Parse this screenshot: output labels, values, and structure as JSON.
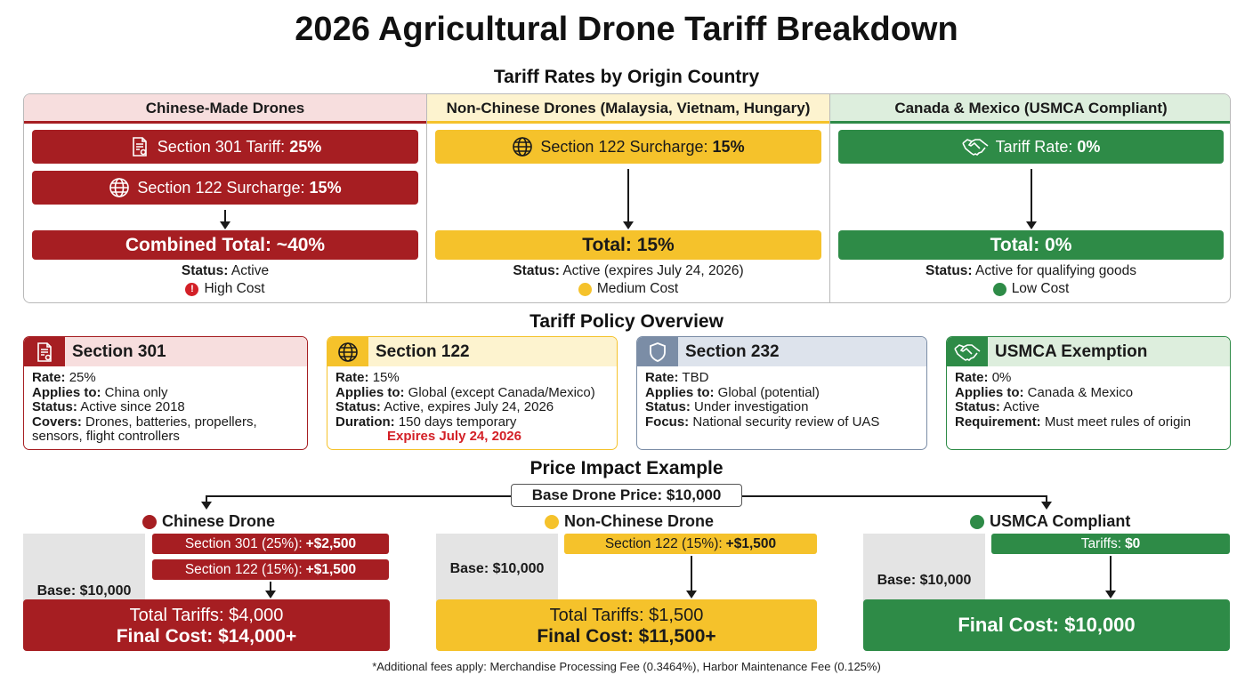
{
  "title": "2026 Agricultural Drone Tariff Breakdown",
  "rates": {
    "heading": "Tariff Rates by Origin Country",
    "colors": {
      "red": "#a61e22",
      "yellow": "#f5c22b",
      "green": "#2e8b47",
      "blue_gray": "#7b8da6"
    },
    "columns": [
      {
        "name": "Chinese-Made Drones",
        "items": [
          {
            "label": "Section 301 Tariff:",
            "value": "25%",
            "icon": "document-icon"
          },
          {
            "label": "Section 122 Surcharge:",
            "value": "15%",
            "icon": "globe-icon"
          }
        ],
        "total": "Combined Total: ~40%",
        "status_label": "Status:",
        "status_value": "Active",
        "cost": "High Cost"
      },
      {
        "name": "Non-Chinese Drones (Malaysia, Vietnam, Hungary)",
        "items": [
          {
            "label": "Section 122 Surcharge:",
            "value": "15%",
            "icon": "globe-icon"
          }
        ],
        "total": "Total: 15%",
        "status_label": "Status:",
        "status_value": "Active (expires July 24, 2026)",
        "cost": "Medium Cost"
      },
      {
        "name": "Canada & Mexico (USMCA Compliant)",
        "items": [
          {
            "label": "Tariff Rate:",
            "value": "0%",
            "icon": "handshake-icon"
          }
        ],
        "total": "Total: 0%",
        "status_label": "Status:",
        "status_value": "Active for qualifying goods",
        "cost": "Low Cost"
      }
    ]
  },
  "policy": {
    "heading": "Tariff Policy Overview",
    "cards": [
      {
        "title": "Section 301",
        "icon": "document-icon",
        "rows": [
          {
            "k": "Rate:",
            "v": "25%"
          },
          {
            "k": "Applies to:",
            "v": "China only"
          },
          {
            "k": "Status:",
            "v": "Active since 2018"
          },
          {
            "k": "Covers:",
            "v": "Drones, batteries, propellers, sensors, flight controllers"
          }
        ]
      },
      {
        "title": "Section 122",
        "icon": "globe-icon",
        "rows": [
          {
            "k": "Rate:",
            "v": "15%"
          },
          {
            "k": "Applies to:",
            "v": "Global (except Canada/Mexico)"
          },
          {
            "k": "Status:",
            "v": "Active, expires July 24, 2026"
          },
          {
            "k": "Duration:",
            "v": "150 days temporary"
          }
        ],
        "note": "Expires July 24, 2026"
      },
      {
        "title": "Section 232",
        "icon": "shield-icon",
        "rows": [
          {
            "k": "Rate:",
            "v": "TBD"
          },
          {
            "k": "Applies to:",
            "v": "Global (potential)"
          },
          {
            "k": "Status:",
            "v": "Under investigation"
          },
          {
            "k": "Focus:",
            "v": "National security review of UAS"
          }
        ]
      },
      {
        "title": "USMCA Exemption",
        "icon": "handshake-icon",
        "rows": [
          {
            "k": "Rate:",
            "v": "0%"
          },
          {
            "k": "Applies to:",
            "v": "Canada & Mexico"
          },
          {
            "k": "Status:",
            "v": "Active"
          },
          {
            "k": "Requirement:",
            "v": "Must meet rules of origin"
          }
        ]
      }
    ]
  },
  "impact": {
    "heading": "Price Impact Example",
    "base_price": "Base Drone Price: $10,000",
    "columns": [
      {
        "title": "Chinese Drone",
        "base": "Base: $10,000",
        "fees": [
          {
            "label": "Section 301 (25%):",
            "value": "+$2,500"
          },
          {
            "label": "Section 122 (15%):",
            "value": "+$1,500"
          }
        ],
        "total_tariffs": "Total Tariffs: $4,000",
        "final": "Final Cost: $14,000+"
      },
      {
        "title": "Non-Chinese Drone",
        "base": "Base: $10,000",
        "fees": [
          {
            "label": "Section 122 (15%):",
            "value": "+$1,500"
          }
        ],
        "total_tariffs": "Total Tariffs: $1,500",
        "final": "Final Cost: $11,500+"
      },
      {
        "title": "USMCA Compliant",
        "base": "Base: $10,000",
        "fees": [
          {
            "label": "Tariffs:",
            "value": "$0"
          }
        ],
        "final": "Final Cost: $10,000"
      }
    ]
  },
  "footnote": "*Additional fees apply: Merchandise Processing Fee (0.3464%), Harbor Maintenance Fee (0.125%)"
}
